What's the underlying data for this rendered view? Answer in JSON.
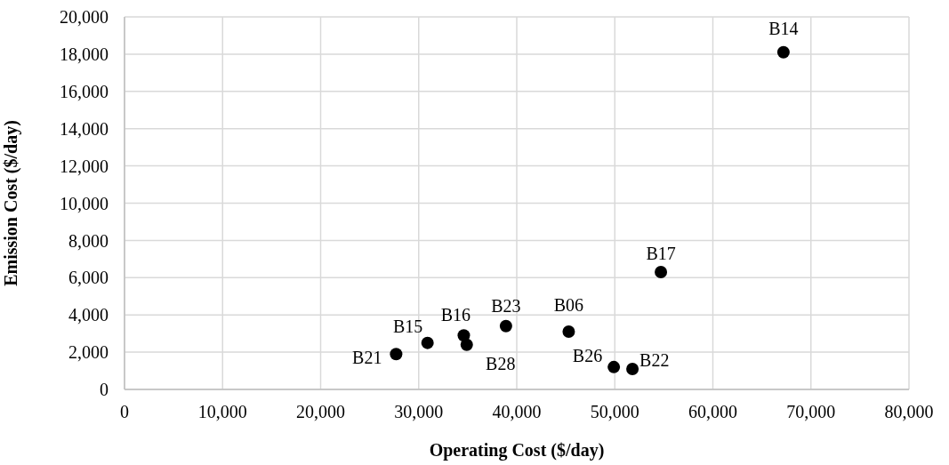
{
  "chart_data": {
    "type": "scatter",
    "xlabel": "Operating Cost ($/day)",
    "ylabel": "Emission Cost ($/day)",
    "x": [
      67200,
      54700,
      38900,
      45300,
      30900,
      34600,
      34900,
      27700,
      49900,
      51800
    ],
    "series": [
      {
        "color": "#000000",
        "values": [
          18100,
          6300,
          3400,
          3100,
          2500,
          2900,
          2400,
          1900,
          1200,
          1100
        ]
      }
    ],
    "xlim": [
      0,
      80000
    ],
    "xticks": [
      0,
      {
        "value": 10000,
        "label": "10,000"
      },
      {
        "value": 20000,
        "label": "20,000"
      },
      {
        "value": 30000,
        "label": "30,000"
      },
      {
        "value": 40000,
        "label": "40,000"
      },
      {
        "value": 50000,
        "label": "50,000"
      },
      {
        "value": 60000,
        "label": "60,000"
      },
      {
        "value": 70000,
        "label": "70,000"
      },
      {
        "value": 80000,
        "label": "80,000"
      }
    ],
    "ylim": [
      0,
      20000
    ],
    "yticks": [
      0,
      {
        "value": 2000,
        "label": "2,000"
      },
      {
        "value": 4000,
        "label": "4,000"
      },
      {
        "value": 6000,
        "label": "6,000"
      },
      {
        "value": 8000,
        "label": "8,000"
      },
      {
        "value": 10000,
        "label": "10,000"
      },
      {
        "value": 12000,
        "label": "12,000"
      },
      {
        "value": 14000,
        "label": "14,000"
      },
      {
        "value": 16000,
        "label": "16,000"
      },
      {
        "value": 18000,
        "label": "18,000"
      },
      {
        "value": 20000,
        "label": "20,000"
      }
    ],
    "grid": true,
    "marker": "circle",
    "legend": false,
    "annotations": [
      {
        "text": "B14",
        "x": 67200,
        "y": 18100
      },
      {
        "text": "B17",
        "x": 54700,
        "y": 6300
      },
      {
        "text": "B23",
        "x": 38900,
        "y": 3400
      },
      {
        "text": "B06",
        "x": 45300,
        "y": 3100
      },
      {
        "text": "B15",
        "x": 30900,
        "y": 2500
      },
      {
        "text": "B16",
        "x": 34600,
        "y": 2900
      },
      {
        "text": "B28",
        "x": 34900,
        "y": 2400
      },
      {
        "text": "B21",
        "x": 27700,
        "y": 1900
      },
      {
        "text": "B26",
        "x": 49900,
        "y": 1200
      },
      {
        "text": "B22",
        "x": 51800,
        "y": 1100
      }
    ]
  }
}
